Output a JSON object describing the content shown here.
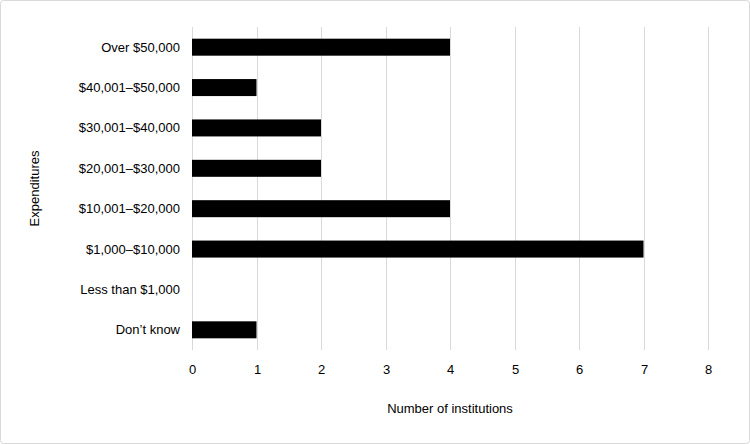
{
  "chart_data": {
    "type": "bar",
    "orientation": "horizontal",
    "x_label": "Number of institutions",
    "y_label": "Expenditures",
    "categories": [
      "Over $50,000",
      "$40,001–$50,000",
      "$30,001–$40,000",
      "$20,001–$30,000",
      "$10,001–$20,000",
      "$1,000–$10,000",
      "Less than $1,000",
      "Don’t know"
    ],
    "values": [
      4,
      1,
      2,
      2,
      4,
      7,
      0,
      1
    ],
    "color": "#000000",
    "xlim": [
      0,
      8
    ],
    "xticks": [
      0,
      1,
      2,
      3,
      4,
      5,
      6,
      7,
      8
    ],
    "grid": true
  }
}
